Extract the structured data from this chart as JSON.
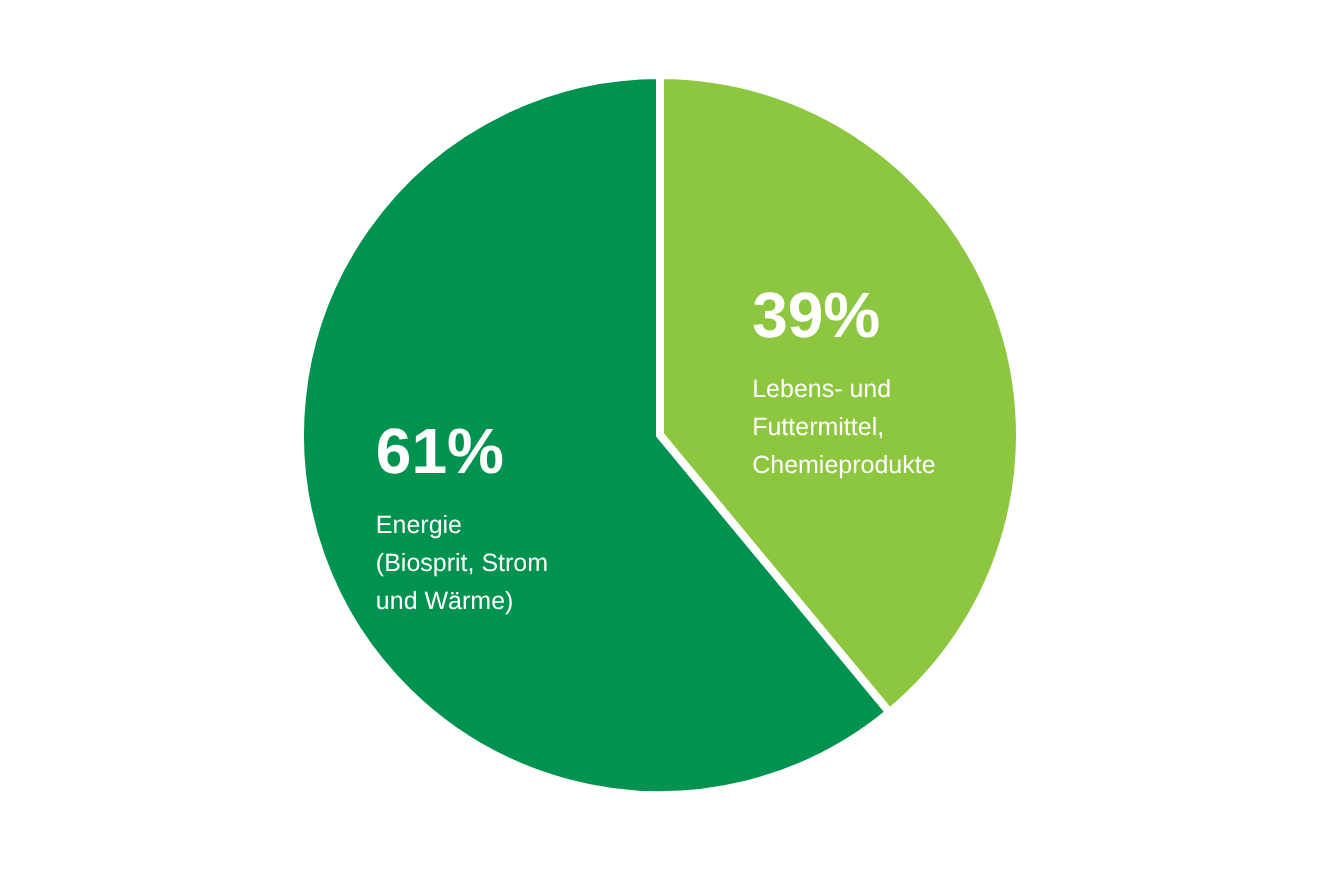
{
  "chart_data": {
    "type": "pie",
    "categories": [
      "Lebens- und Futtermittel, Chemieprodukte",
      "Energie (Biosprit, Strom und Wärme)"
    ],
    "values": [
      39,
      61
    ],
    "colors": [
      "#8dc63f",
      "#00924f"
    ],
    "value_labels": [
      "39%",
      "61%"
    ]
  }
}
